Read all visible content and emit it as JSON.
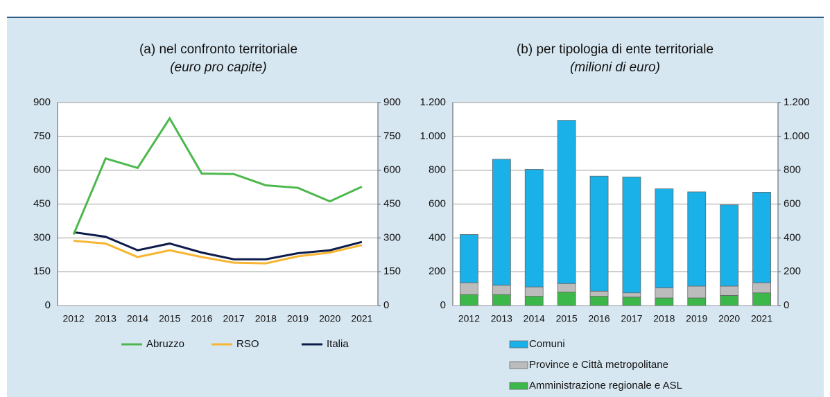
{
  "chart_data": [
    {
      "type": "line",
      "title": "(a) nel confronto territoriale",
      "subtitle": "(euro pro capite)",
      "categories": [
        "2012",
        "2013",
        "2014",
        "2015",
        "2016",
        "2017",
        "2018",
        "2019",
        "2020",
        "2021"
      ],
      "series": [
        {
          "name": "Abruzzo",
          "color": "#4cb84c",
          "values": [
            315,
            652,
            610,
            830,
            585,
            583,
            533,
            522,
            462,
            527
          ]
        },
        {
          "name": "RSO",
          "color": "#f7b531",
          "values": [
            287,
            275,
            215,
            245,
            215,
            190,
            187,
            218,
            235,
            268
          ]
        },
        {
          "name": "Italia",
          "color": "#0d1b4a",
          "values": [
            325,
            305,
            245,
            275,
            235,
            205,
            205,
            232,
            245,
            282
          ]
        }
      ],
      "ylim": [
        0,
        900
      ],
      "yticks": [
        0,
        150,
        300,
        450,
        600,
        750,
        900
      ],
      "y2lim": [
        0,
        900
      ],
      "y2ticks": [
        0,
        150,
        300,
        450,
        600,
        750,
        900
      ],
      "grid": true
    },
    {
      "type": "bar",
      "stacked": true,
      "title": "(b) per tipologia di ente territoriale",
      "subtitle": "(milioni di euro)",
      "categories": [
        "2012",
        "2013",
        "2014",
        "2015",
        "2016",
        "2017",
        "2018",
        "2019",
        "2020",
        "2021"
      ],
      "series": [
        {
          "name": "Amministrazione regionale e ASL",
          "color": "#3cb84a",
          "values": [
            65,
            65,
            55,
            80,
            55,
            50,
            45,
            45,
            60,
            75
          ]
        },
        {
          "name": "Province e Città metropolitane",
          "color": "#bcbcbc",
          "values": [
            70,
            55,
            55,
            50,
            30,
            25,
            60,
            70,
            55,
            60
          ]
        },
        {
          "name": "Comuni",
          "color": "#1ab0e8",
          "values": [
            285,
            745,
            695,
            965,
            680,
            685,
            585,
            557,
            480,
            535
          ]
        }
      ],
      "ylim": [
        0,
        1200
      ],
      "yticks": [
        0,
        200,
        400,
        600,
        800,
        {
          "value": 1000,
          "label": "1.000"
        },
        {
          "value": 1200,
          "label": "1.200"
        }
      ],
      "y2lim": [
        0,
        1200
      ],
      "y2ticks": [
        0,
        200,
        400,
        600,
        800,
        {
          "value": 1000,
          "label": "1.000"
        },
        {
          "value": 1200,
          "label": "1.200"
        }
      ],
      "grid": true
    }
  ]
}
